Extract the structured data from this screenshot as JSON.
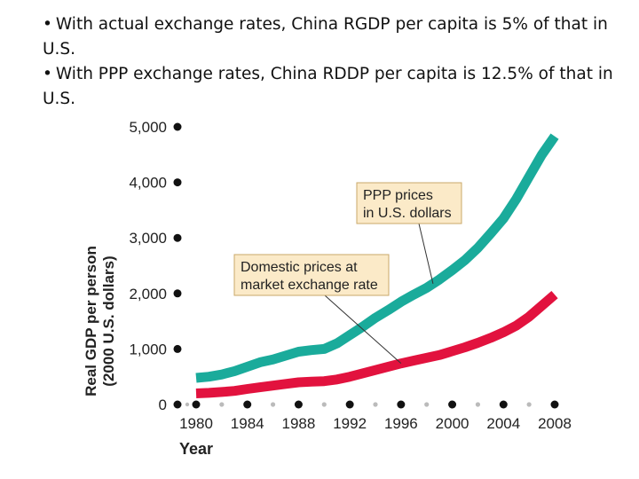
{
  "bullets": [
    "With actual exchange rates, China RGDP per capita is 5% of that in U.S.",
    "With PPP exchange rates,  China RDDP per capita is 12.5% of that in U.S."
  ],
  "colors": {
    "ppp_line": "#1aab9b",
    "market_line": "#e2123e",
    "callout_fill": "#fbeac8",
    "callout_border": "#c9a86a",
    "axis_dot": "#111111",
    "minor_dot": "#bbbbbb"
  },
  "chart_data": {
    "type": "line",
    "ylabel": "Real GDP per person (2000 U.S. dollars)",
    "ylabel_lines": [
      "Real GDP per person",
      "(2000 U.S. dollars)"
    ],
    "xlabel": "Year",
    "ylim": [
      0,
      5000
    ],
    "xlim": [
      1980,
      2008
    ],
    "yticks": [
      0,
      1000,
      2000,
      3000,
      4000,
      5000
    ],
    "ytick_labels": [
      "0",
      "1,000",
      "2,000",
      "3,000",
      "4,000",
      "5,000"
    ],
    "xticks": [
      1980,
      1984,
      1988,
      1992,
      1996,
      2000,
      2004,
      2008
    ],
    "xtick_labels": [
      "1980",
      "1984",
      "1988",
      "1992",
      "1996",
      "2000",
      "2004",
      "2008"
    ],
    "grid": false,
    "x": [
      1980,
      1981,
      1982,
      1983,
      1984,
      1985,
      1986,
      1987,
      1988,
      1989,
      1990,
      1991,
      1992,
      1993,
      1994,
      1995,
      1996,
      1997,
      1998,
      1999,
      2000,
      2001,
      2002,
      2003,
      2004,
      2005,
      2006,
      2007,
      2008
    ],
    "series": [
      {
        "name": "PPP prices in U.S. dollars",
        "color_key": "ppp_line",
        "values": [
          480,
          500,
          540,
          600,
          680,
          760,
          810,
          880,
          950,
          980,
          1000,
          1100,
          1250,
          1400,
          1560,
          1700,
          1850,
          1980,
          2100,
          2250,
          2420,
          2600,
          2820,
          3080,
          3350,
          3700,
          4100,
          4500,
          4830
        ]
      },
      {
        "name": "Domestic prices at market exchange rate",
        "color_key": "market_line",
        "values": [
          200,
          210,
          225,
          245,
          280,
          310,
          340,
          370,
          400,
          410,
          420,
          450,
          500,
          560,
          620,
          680,
          740,
          790,
          840,
          890,
          960,
          1030,
          1110,
          1200,
          1300,
          1420,
          1580,
          1780,
          1980
        ]
      }
    ],
    "annotations": [
      {
        "lines": [
          "PPP prices",
          "in U.S. dollars"
        ],
        "target_series": 0,
        "target_x": 1998.5
      },
      {
        "lines": [
          "Domestic prices at",
          "market exchange rate"
        ],
        "target_series": 1,
        "target_x": 1996
      }
    ]
  }
}
